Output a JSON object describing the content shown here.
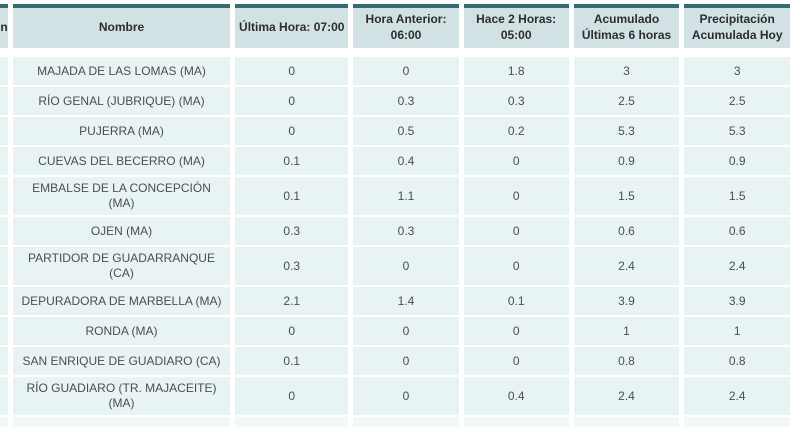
{
  "table": {
    "partial_first_column_header": "n",
    "columns": [
      {
        "line1": "Nombre",
        "line2": ""
      },
      {
        "line1": "Última Hora: 07:00",
        "line2": ""
      },
      {
        "line1": "Hora Anterior:",
        "line2": "06:00"
      },
      {
        "line1": "Hace 2 Horas:",
        "line2": "05:00"
      },
      {
        "line1": "Acumulado",
        "line2": "Últimas 6 horas"
      },
      {
        "line1": "Precipitación",
        "line2": "Acumulada Hoy"
      }
    ],
    "rows": [
      {
        "nombre": "MAJADA DE LAS LOMAS (MA)",
        "values": [
          "0",
          "0",
          "1.8",
          "3",
          "3"
        ]
      },
      {
        "nombre": "RÍO GENAL (JUBRIQUE) (MA)",
        "values": [
          "0",
          "0.3",
          "0.3",
          "2.5",
          "2.5"
        ]
      },
      {
        "nombre": "PUJERRA (MA)",
        "values": [
          "0",
          "0.5",
          "0.2",
          "5.3",
          "5.3"
        ]
      },
      {
        "nombre": "CUEVAS DEL BECERRO (MA)",
        "values": [
          "0.1",
          "0.4",
          "0",
          "0.9",
          "0.9"
        ]
      },
      {
        "nombre": "EMBALSE DE LA CONCEPCIÓN (MA)",
        "values": [
          "0.1",
          "1.1",
          "0",
          "1.5",
          "1.5"
        ]
      },
      {
        "nombre": "OJEN (MA)",
        "values": [
          "0.3",
          "0.3",
          "0",
          "0.6",
          "0.6"
        ]
      },
      {
        "nombre": "PARTIDOR DE GUADARRANQUE (CA)",
        "values": [
          "0.3",
          "0",
          "0",
          "2.4",
          "2.4"
        ]
      },
      {
        "nombre": "DEPURADORA DE MARBELLA (MA)",
        "values": [
          "2.1",
          "1.4",
          "0.1",
          "3.9",
          "3.9"
        ]
      },
      {
        "nombre": "RONDA (MA)",
        "values": [
          "0",
          "0",
          "0",
          "1",
          "1"
        ]
      },
      {
        "nombre": "SAN ENRIQUE DE GUADIARO (CA)",
        "values": [
          "0.1",
          "0",
          "0",
          "0.8",
          "0.8"
        ]
      },
      {
        "nombre": "RÍO GUADIARO (TR. MAJACEITE) (MA)",
        "values": [
          "0",
          "0",
          "0.4",
          "2.4",
          "2.4"
        ]
      }
    ]
  },
  "colors": {
    "header_top_border": "#376b6d",
    "header_background": "#d2e2e4",
    "row_background": "#e8f4f4",
    "partial_row_background": "#f0f8f8",
    "header_text": "#2d2d2d",
    "cell_text": "#4d4d4d",
    "page_background": "#ffffff"
  }
}
